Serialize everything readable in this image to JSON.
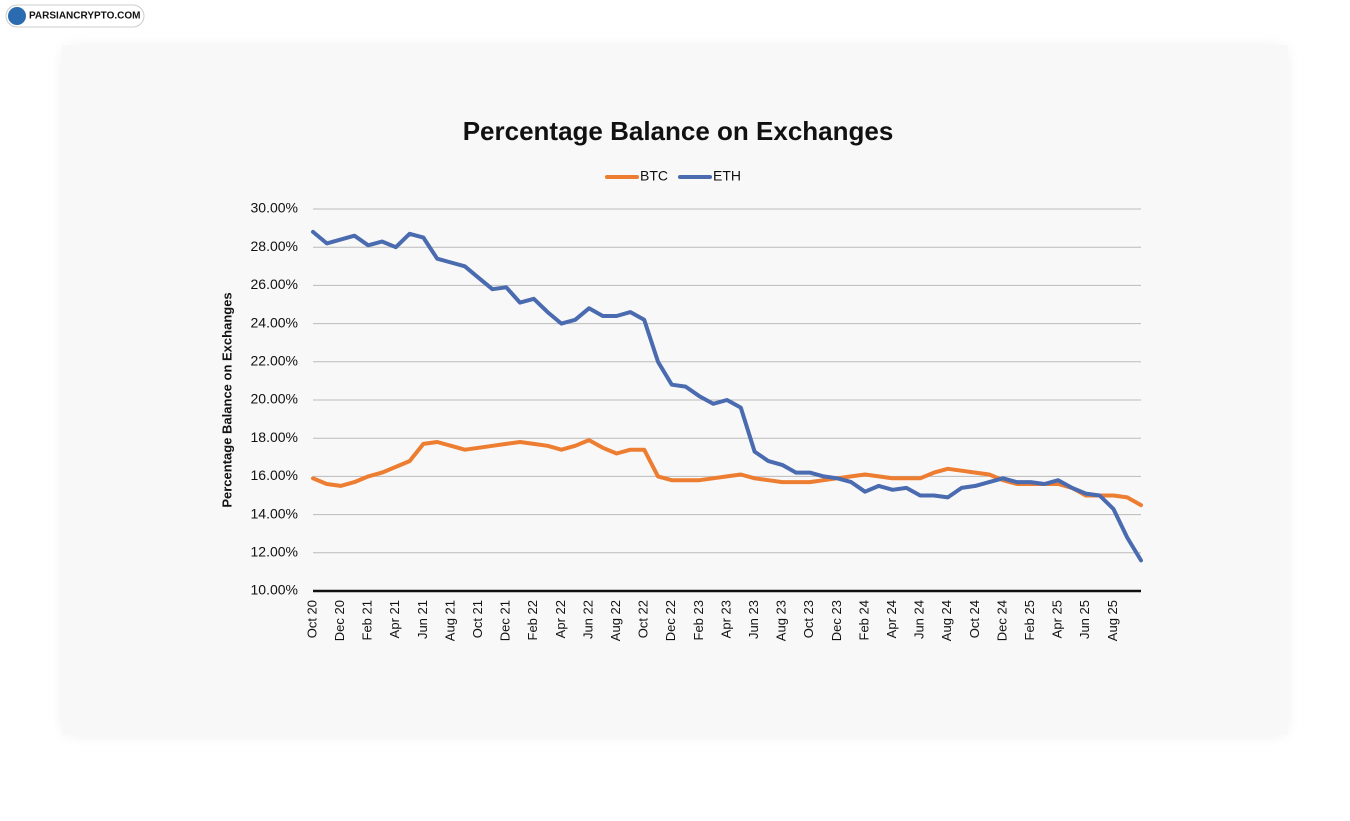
{
  "watermark": "PARSIANCRYPTO.COM",
  "chart_data": {
    "type": "line",
    "title": "Percentage Balance on Exchanges",
    "y_label": "Percentage Balance on Exchanges",
    "categories": [
      "Oct 20",
      null,
      "Dec 20",
      null,
      "Feb 21",
      null,
      "Apr 21",
      null,
      "Jun 21",
      null,
      "Aug 21",
      null,
      "Oct 21",
      null,
      "Dec 21",
      null,
      "Feb 22",
      null,
      "Apr 22",
      null,
      "Jun 22",
      null,
      "Aug 22",
      null,
      "Oct 22",
      null,
      "Dec 22",
      null,
      "Feb 23",
      null,
      "Apr 23",
      null,
      "Jun 23",
      null,
      "Aug 23",
      null,
      "Oct 23",
      null,
      "Dec 23",
      null,
      "Feb 24",
      null,
      "Apr 24",
      null,
      "Jun 24",
      null,
      "Aug 24",
      null,
      "Oct 24",
      null,
      "Dec 24",
      null,
      "Feb 25",
      null,
      "Apr 25",
      null,
      "Jun 25",
      null,
      "Aug 25",
      null,
      null
    ],
    "series": [
      {
        "name": "BTC",
        "color": "#ed7d31",
        "values": [
          15.9,
          15.6,
          15.5,
          15.7,
          16.0,
          16.2,
          16.5,
          16.8,
          17.7,
          17.8,
          17.6,
          17.4,
          17.5,
          17.6,
          17.7,
          17.8,
          17.7,
          17.6,
          17.4,
          17.6,
          17.9,
          17.5,
          17.2,
          17.4,
          17.4,
          16.0,
          15.8,
          15.8,
          15.8,
          15.9,
          16.0,
          16.1,
          15.9,
          15.8,
          15.7,
          15.7,
          15.7,
          15.8,
          15.9,
          16.0,
          16.1,
          16.0,
          15.9,
          15.9,
          15.9,
          16.2,
          16.4,
          16.3,
          16.2,
          16.1,
          15.8,
          15.6,
          15.6,
          15.6,
          15.6,
          15.4,
          15.0,
          15.0,
          15.0,
          14.9,
          14.5
        ]
      },
      {
        "name": "ETH",
        "color": "#4a6bb0",
        "values": [
          28.8,
          28.2,
          28.4,
          28.6,
          28.1,
          28.3,
          28.0,
          28.7,
          28.5,
          27.4,
          27.2,
          27.0,
          26.4,
          25.8,
          25.9,
          25.1,
          25.3,
          24.6,
          24.0,
          24.2,
          24.8,
          24.4,
          24.4,
          24.6,
          24.2,
          22.0,
          20.8,
          20.7,
          20.2,
          19.8,
          20.0,
          19.6,
          17.3,
          16.8,
          16.6,
          16.2,
          16.2,
          16.0,
          15.9,
          15.7,
          15.2,
          15.5,
          15.3,
          15.4,
          15.0,
          15.0,
          14.9,
          15.4,
          15.5,
          15.7,
          15.9,
          15.7,
          15.7,
          15.6,
          15.8,
          15.4,
          15.1,
          15.0,
          14.3,
          12.8,
          11.6
        ]
      }
    ],
    "ylim": [
      10,
      30
    ],
    "yticks": [
      {
        "value": 10,
        "label": "10.00%"
      },
      {
        "value": 12,
        "label": "12.00%"
      },
      {
        "value": 14,
        "label": "14.00%"
      },
      {
        "value": 16,
        "label": "16.00%"
      },
      {
        "value": 18,
        "label": "18.00%"
      },
      {
        "value": 20,
        "label": "20.00%"
      },
      {
        "value": 22,
        "label": "22.00%"
      },
      {
        "value": 24,
        "label": "24.00%"
      },
      {
        "value": 26,
        "label": "26.00%"
      },
      {
        "value": 28,
        "label": "28.00%"
      },
      {
        "value": 30,
        "label": "30.00%"
      }
    ],
    "grid": true,
    "legend": "top"
  }
}
